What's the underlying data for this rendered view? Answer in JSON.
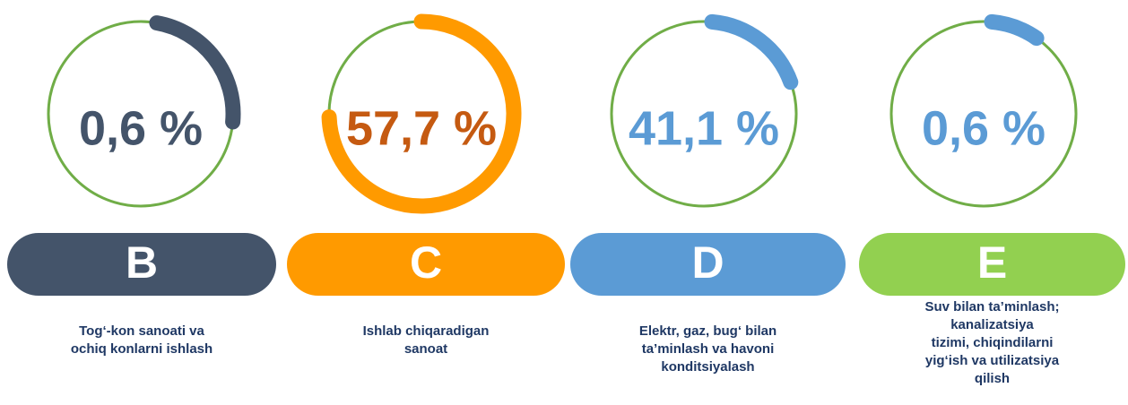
{
  "items": [
    {
      "value_label": "0,6 %",
      "letter": "B",
      "description": [
        "Tog‘-kon sanoati va",
        "ochiq konlarni ishlash"
      ]
    },
    {
      "value_label": "57,7 %",
      "letter": "C",
      "description": [
        "Ishlab chiqaradigan",
        "sanoat"
      ]
    },
    {
      "value_label": "41,1 %",
      "letter": "D",
      "description": [
        "Elektr, gaz, bug‘ bilan",
        "ta’minlash va havoni",
        "konditsiyalash"
      ]
    },
    {
      "value_label": "0,6 %",
      "letter": "E",
      "description": [
        "Suv bilan ta’minlash;",
        "kanalizatsiya",
        "tizimi, chiqindilarni",
        "yig‘ish va utilizatsiya",
        "qilish"
      ]
    }
  ]
}
